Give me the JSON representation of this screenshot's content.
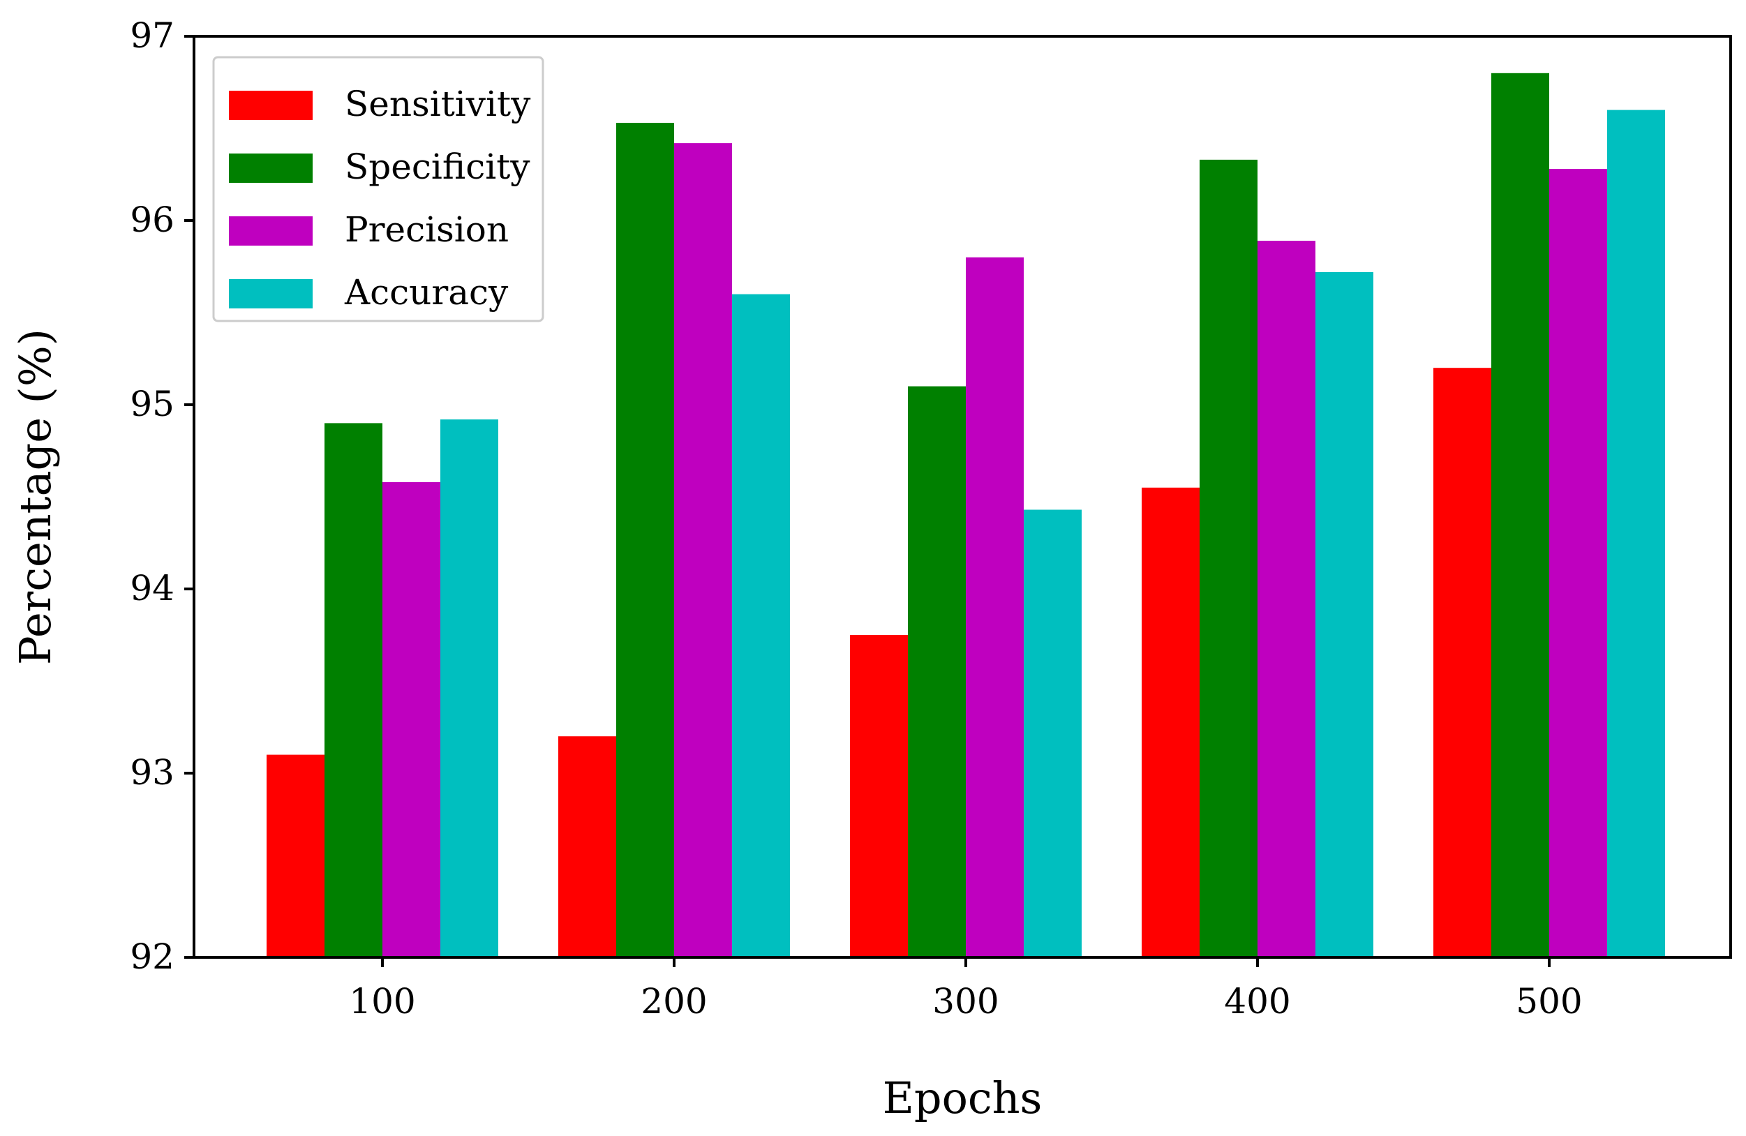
{
  "chart_data": {
    "type": "bar",
    "title": "",
    "xlabel": "Epochs",
    "ylabel": "Percentage (%)",
    "categories": [
      "100",
      "200",
      "300",
      "400",
      "500"
    ],
    "ylim": [
      92,
      97
    ],
    "yticks": [
      92,
      93,
      94,
      95,
      96,
      97
    ],
    "ytick_labels": [
      "92",
      "93",
      "94",
      "95",
      "96",
      "97"
    ],
    "grid": false,
    "legend_position": "top-left",
    "series": [
      {
        "name": "Sensitivity",
        "color": "#ff0000",
        "values": [
          93.1,
          93.2,
          93.75,
          94.55,
          95.2
        ]
      },
      {
        "name": "Specificity",
        "color": "#008000",
        "values": [
          94.9,
          96.53,
          95.1,
          96.33,
          96.8
        ]
      },
      {
        "name": "Precision",
        "color": "#bf00bf",
        "values": [
          94.58,
          96.42,
          95.8,
          95.89,
          96.28
        ]
      },
      {
        "name": "Accuracy",
        "color": "#00bfbf",
        "values": [
          94.92,
          95.6,
          94.43,
          95.72,
          96.6
        ]
      }
    ]
  }
}
